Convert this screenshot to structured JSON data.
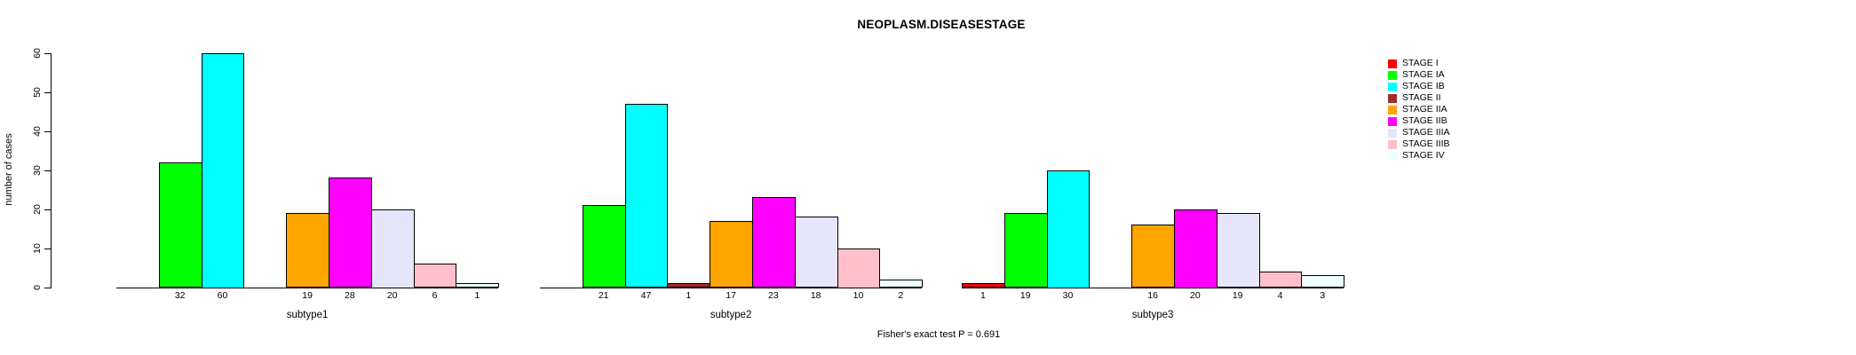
{
  "title": "NEOPLASM.DISEASESTAGE",
  "footer_note": "Fisher's exact test P = 0.691",
  "chart_data": {
    "type": "bar",
    "title": "NEOPLASM.DISEASESTAGE",
    "ylabel": "number of cases",
    "xlabel": "",
    "ylim": [
      0,
      60
    ],
    "yticks": [
      0,
      10,
      20,
      30,
      40,
      50,
      60
    ],
    "grid": "off",
    "legend_position": "right",
    "categories": [
      "subtype1",
      "subtype2",
      "subtype3"
    ],
    "series": [
      {
        "name": "STAGE I",
        "color": "#FF0000",
        "values": [
          0,
          0,
          1
        ]
      },
      {
        "name": "STAGE IA",
        "color": "#00FF00",
        "values": [
          32,
          21,
          19
        ]
      },
      {
        "name": "STAGE IB",
        "color": "#00FFFF",
        "values": [
          60,
          47,
          30
        ]
      },
      {
        "name": "STAGE II",
        "color": "#A52A2A",
        "values": [
          0,
          1,
          0
        ]
      },
      {
        "name": "STAGE IIA",
        "color": "#FFA500",
        "values": [
          19,
          17,
          16
        ]
      },
      {
        "name": "STAGE IIB",
        "color": "#FF00FF",
        "values": [
          28,
          23,
          20
        ]
      },
      {
        "name": "STAGE IIIA",
        "color": "#E6E6FA",
        "values": [
          20,
          18,
          19
        ]
      },
      {
        "name": "STAGE IIIB",
        "color": "#FFC0CB",
        "values": [
          6,
          10,
          4
        ]
      },
      {
        "name": "STAGE IV",
        "color": "#F0FFFF",
        "values": [
          1,
          2,
          3
        ]
      }
    ],
    "bar_value_labels": "non-zero bar values printed below the baseline under each bar",
    "annotation": "Fisher's exact test P = 0.691"
  }
}
